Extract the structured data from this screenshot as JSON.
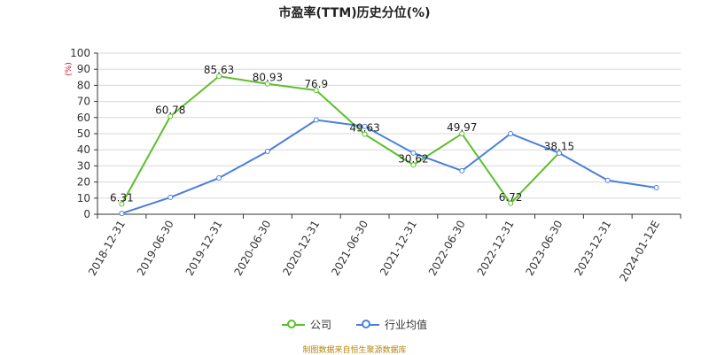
{
  "chart_data": {
    "type": "line",
    "title": "市盈率(TTM)历史分位(%)",
    "unit_label": "(%)",
    "categories": [
      "2018-12-31",
      "2019-06-30",
      "2019-12-31",
      "2020-06-30",
      "2020-12-31",
      "2021-06-30",
      "2021-12-31",
      "2022-06-30",
      "2022-12-31",
      "2023-06-30",
      "2023-12-31",
      "2024-01-12E"
    ],
    "ylim": [
      0,
      100
    ],
    "yticks": [
      0,
      10,
      20,
      30,
      40,
      50,
      60,
      70,
      80,
      90,
      100
    ],
    "grid": true,
    "legend_position": "bottom",
    "series": [
      {
        "name": "公司",
        "color": "#5cbf2a",
        "values": [
          6.31,
          60.78,
          85.63,
          80.93,
          76.9,
          49.63,
          30.62,
          49.97,
          6.72,
          38.15,
          null,
          null
        ],
        "labels": [
          "6.31",
          "60.78",
          "85.63",
          "80.93",
          "76.9",
          "49.63",
          "30.62",
          "49.97",
          "6.72",
          "38.15",
          null,
          null
        ]
      },
      {
        "name": "行业均值",
        "color": "#4a7fdc",
        "values": [
          0.5,
          10.5,
          22.5,
          39,
          58.5,
          54.5,
          38,
          27,
          50,
          38,
          21,
          16.5
        ],
        "labels": [
          null,
          null,
          null,
          null,
          null,
          null,
          null,
          null,
          null,
          null,
          null,
          null
        ]
      }
    ]
  },
  "footer": {
    "source": "制图数据来自恒生聚源数据库"
  }
}
